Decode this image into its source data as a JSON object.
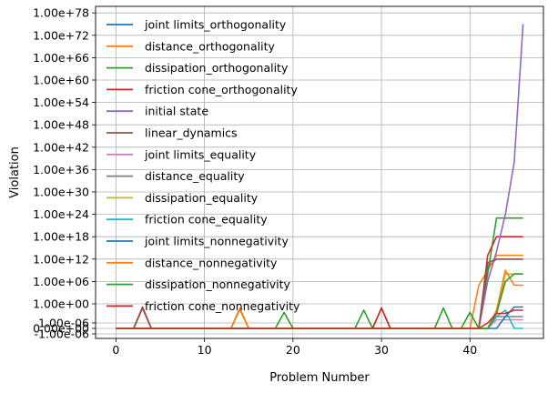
{
  "chart_data": {
    "type": "line",
    "title": "",
    "xlabel": "Problem Number",
    "ylabel": "Violation",
    "xlim": [
      -2.3,
      48.3
    ],
    "x_ticks": [
      0,
      10,
      20,
      30,
      40
    ],
    "y_scale": "symlog",
    "grid": true,
    "legend_position": "upper-left",
    "y_ticks": [
      {
        "value": "-1e-06",
        "label": "-1.00e-06"
      },
      {
        "value": "0",
        "label": "0.00e+00"
      },
      {
        "value": "1e-06",
        "label": "1.00e-06"
      },
      {
        "value": "1e0",
        "label": "1.00e+00"
      },
      {
        "value": "1e6",
        "label": "1.00e+06"
      },
      {
        "value": "1e12",
        "label": "1.00e+12"
      },
      {
        "value": "1e18",
        "label": "1.00e+18"
      },
      {
        "value": "1e24",
        "label": "1.00e+24"
      },
      {
        "value": "1e30",
        "label": "1.00e+30"
      },
      {
        "value": "1e36",
        "label": "1.00e+36"
      },
      {
        "value": "1e42",
        "label": "1.00e+42"
      },
      {
        "value": "1e48",
        "label": "1.00e+48"
      },
      {
        "value": "1e54",
        "label": "1.00e+54"
      },
      {
        "value": "1e60",
        "label": "1.00e+60"
      },
      {
        "value": "1e66",
        "label": "1.00e+66"
      },
      {
        "value": "1e72",
        "label": "1.00e+72"
      },
      {
        "value": "1e78",
        "label": "1.00e+78"
      }
    ],
    "series": [
      {
        "name": "joint limits_orthogonality",
        "color": "#1f77b4",
        "points": [
          [
            0,
            0
          ],
          [
            41,
            0
          ],
          [
            42,
            10000000000.0
          ],
          [
            43,
            1000000000000.0
          ],
          [
            44,
            1000000000000.0
          ],
          [
            45,
            1000000000000.0
          ],
          [
            46,
            1000000000000.0
          ]
        ]
      },
      {
        "name": "distance_orthogonality",
        "color": "#ff7f0e",
        "points": [
          [
            0,
            0
          ],
          [
            40,
            0
          ],
          [
            41,
            100000.0
          ],
          [
            42,
            1000000000.0
          ],
          [
            43,
            10000000000000.0
          ],
          [
            44,
            10000000000000.0
          ],
          [
            45,
            10000000000000.0
          ],
          [
            46,
            10000000000000.0
          ]
        ]
      },
      {
        "name": "dissipation_orthogonality",
        "color": "#2ca02c",
        "points": [
          [
            0,
            0
          ],
          [
            2,
            0
          ],
          [
            3,
            0.05
          ],
          [
            4,
            0
          ],
          [
            13,
            0
          ],
          [
            14,
            0.02
          ],
          [
            15,
            0
          ],
          [
            18,
            0
          ],
          [
            19,
            0.002
          ],
          [
            20,
            0
          ],
          [
            27,
            0
          ],
          [
            28,
            0.01
          ],
          [
            29,
            0
          ],
          [
            30,
            0.05
          ],
          [
            31,
            0
          ],
          [
            36,
            0
          ],
          [
            37,
            0.05
          ],
          [
            38,
            0
          ],
          [
            39,
            0
          ],
          [
            40,
            0.002
          ],
          [
            41,
            0
          ],
          [
            42,
            100000000.0
          ],
          [
            43,
            1e+23
          ],
          [
            44,
            1e+23
          ],
          [
            45,
            1e+23
          ],
          [
            46,
            1e+23
          ]
        ]
      },
      {
        "name": "friction cone_orthogonality",
        "color": "#d62728",
        "points": [
          [
            0,
            0
          ],
          [
            2,
            0
          ],
          [
            3,
            0.1
          ],
          [
            4,
            0
          ],
          [
            29,
            0
          ],
          [
            30,
            0.05
          ],
          [
            31,
            0
          ],
          [
            41,
            0
          ],
          [
            42,
            10000000000000.0
          ],
          [
            43,
            1e+18
          ],
          [
            44,
            1e+18
          ],
          [
            45,
            1e+18
          ],
          [
            46,
            1e+18
          ]
        ]
      },
      {
        "name": "initial state",
        "color": "#9467bd",
        "points": [
          [
            0,
            0
          ],
          [
            41,
            0
          ],
          [
            42,
            1000000.0
          ],
          [
            43,
            100000000000000.0
          ],
          [
            44,
            1e+24
          ],
          [
            45,
            1e+38
          ],
          [
            46,
            1e+75
          ]
        ]
      },
      {
        "name": "linear_dynamics",
        "color": "#8c564b",
        "points": [
          [
            0,
            0
          ],
          [
            2,
            0
          ],
          [
            3,
            0.05
          ],
          [
            4,
            0
          ],
          [
            41,
            0
          ],
          [
            42,
            100000000000.0
          ],
          [
            43,
            1000000000000.0
          ],
          [
            44,
            1000000000000.0
          ],
          [
            45,
            1000000000000.0
          ],
          [
            46,
            1000000000000.0
          ]
        ]
      },
      {
        "name": "joint limits_equality",
        "color": "#e377c2",
        "points": [
          [
            0,
            0
          ],
          [
            42,
            0
          ],
          [
            43,
            1e-05
          ],
          [
            44,
            1e-05
          ],
          [
            45,
            1e-05
          ],
          [
            46,
            1e-05
          ]
        ]
      },
      {
        "name": "distance_equality",
        "color": "#7f7f7f",
        "points": [
          [
            0,
            0
          ],
          [
            42,
            0
          ],
          [
            43,
            0.0001
          ],
          [
            44,
            0.0001
          ],
          [
            45,
            0.0001
          ],
          [
            46,
            0.0001
          ]
        ]
      },
      {
        "name": "dissipation_equality",
        "color": "#bcbd22",
        "points": [
          [
            0,
            0
          ],
          [
            42,
            0
          ],
          [
            43,
            0.001
          ],
          [
            44,
            100000000.0
          ],
          [
            45,
            100000000.0
          ],
          [
            46,
            100000000.0
          ]
        ]
      },
      {
        "name": "friction cone_equality",
        "color": "#17becf",
        "points": [
          [
            0,
            0
          ],
          [
            42,
            0
          ],
          [
            43,
            0.0001
          ],
          [
            44,
            0.01
          ],
          [
            45,
            0
          ],
          [
            46,
            0
          ]
        ]
      },
      {
        "name": "joint limits_nonnegativity",
        "color": "#1f77b4",
        "points": [
          [
            0,
            0
          ],
          [
            43,
            0
          ],
          [
            44,
            0.0001
          ],
          [
            45,
            0.1
          ],
          [
            46,
            0.1
          ]
        ]
      },
      {
        "name": "distance_nonnegativity",
        "color": "#ff7f0e",
        "points": [
          [
            0,
            0
          ],
          [
            13,
            0
          ],
          [
            14,
            0.05
          ],
          [
            15,
            0
          ],
          [
            42,
            0
          ],
          [
            43,
            0.01
          ],
          [
            44,
            1000000000.0
          ],
          [
            45,
            100000.0
          ],
          [
            46,
            100000.0
          ]
        ]
      },
      {
        "name": "dissipation_nonnegativity",
        "color": "#2ca02c",
        "points": [
          [
            0,
            0
          ],
          [
            42,
            0
          ],
          [
            43,
            0.001
          ],
          [
            44,
            1000000.0
          ],
          [
            45,
            100000000.0
          ],
          [
            46,
            100000000.0
          ]
        ]
      },
      {
        "name": "friction cone_nonnegativity",
        "color": "#d62728",
        "points": [
          [
            0,
            0
          ],
          [
            41,
            0
          ],
          [
            42,
            1e-06
          ],
          [
            43,
            0.001
          ],
          [
            44,
            0.001
          ],
          [
            45,
            0.01
          ],
          [
            46,
            0.01
          ]
        ]
      }
    ]
  }
}
